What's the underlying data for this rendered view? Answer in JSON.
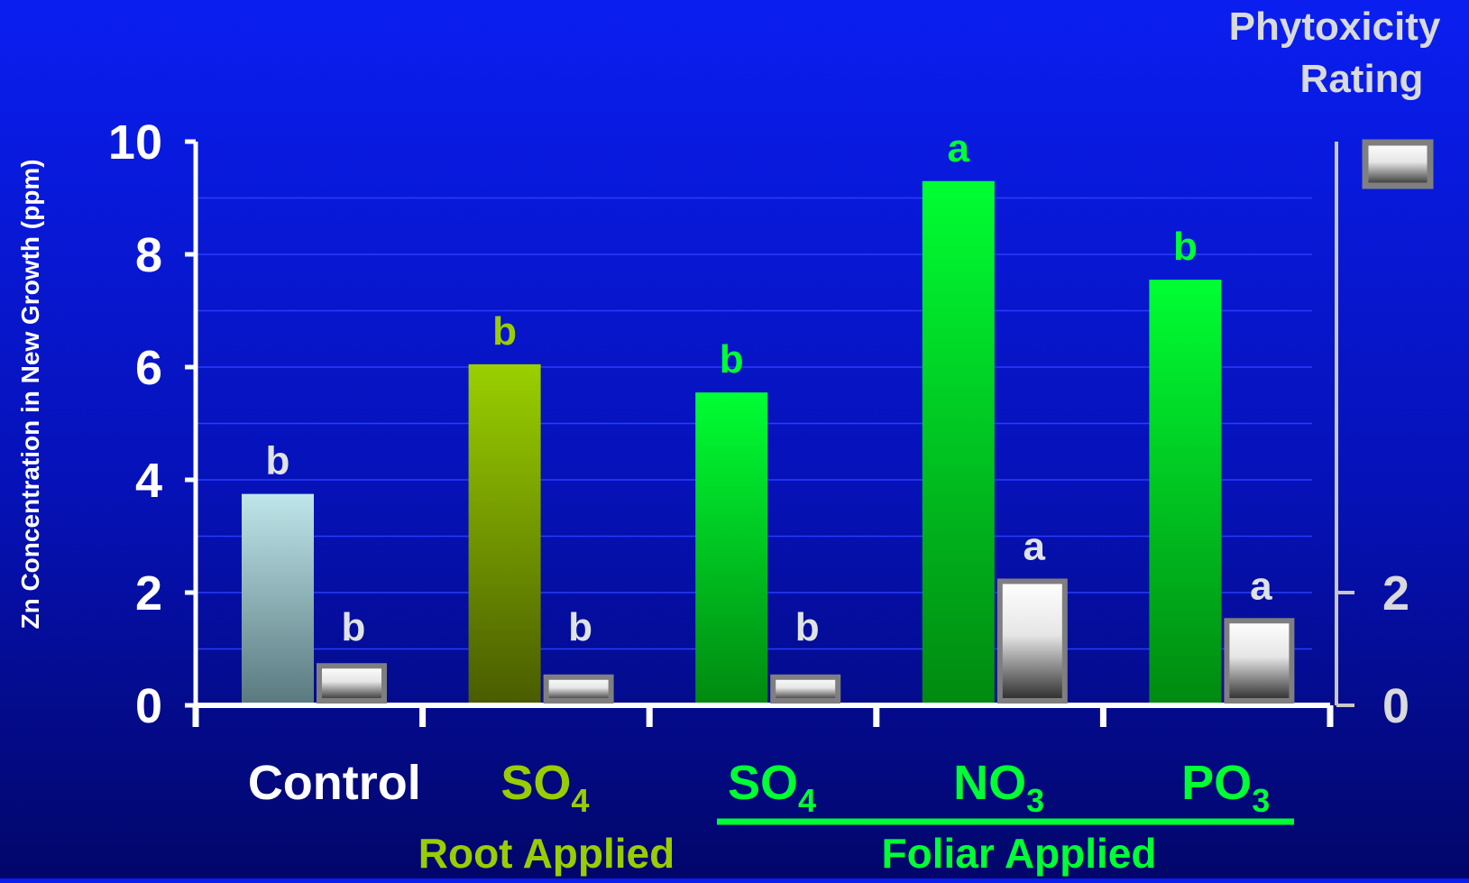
{
  "chart_data": {
    "type": "bar",
    "ylabel": "Zn Concentration in New Growth (ppm)",
    "y2label_line1": "Phytoxicity",
    "y2label_line2": "Rating",
    "ylim": [
      0,
      10
    ],
    "yticks": [
      "0",
      "2",
      "4",
      "6",
      "8",
      "10"
    ],
    "y2lim": [
      0,
      10
    ],
    "y2ticks": [
      "0",
      "2"
    ],
    "categories": [
      {
        "label": "Control",
        "sub": "",
        "color": "#ffffff"
      },
      {
        "label": "SO",
        "sub": "4",
        "color": "#9acd00"
      },
      {
        "label": "SO",
        "sub": "4",
        "color": "#00ff33"
      },
      {
        "label": "NO",
        "sub": "3",
        "color": "#00ff33"
      },
      {
        "label": "PO",
        "sub": "3",
        "color": "#00ff33"
      }
    ],
    "groups": [
      {
        "label": "Root Applied",
        "color": "#9acd00"
      },
      {
        "label": "Foliar Applied",
        "color": "#00ff33"
      }
    ],
    "series": [
      {
        "values": [
          3.75,
          6.05,
          5.55,
          9.3,
          7.55
        ],
        "letters": [
          "b",
          "b",
          "b",
          "a",
          "b"
        ],
        "colors": [
          "#b8e0e4",
          "#9acd00",
          "#00ff33",
          "#00ff33",
          "#00ff33"
        ],
        "letter_colors": [
          "#dfe3e6",
          "#9acd00",
          "#00ff33",
          "#00ff33",
          "#00ff33"
        ]
      },
      {
        "values": [
          0.7,
          0.5,
          0.5,
          2.2,
          1.5
        ],
        "letters": [
          "b",
          "b",
          "b",
          "a",
          "a"
        ],
        "letter_color": "#dfe3e6"
      }
    ],
    "grid": true,
    "legend": "top-right",
    "colors": {
      "axis": "#ffffff",
      "axis2": "#c8c8c8",
      "grid": "#2a3cff",
      "tick_label": "#ffffff",
      "tick_label2": "#d8dadc",
      "ylabel": "#ffffff",
      "y2label": "#d8dadc",
      "rating_border": "#7f7f7f"
    }
  }
}
